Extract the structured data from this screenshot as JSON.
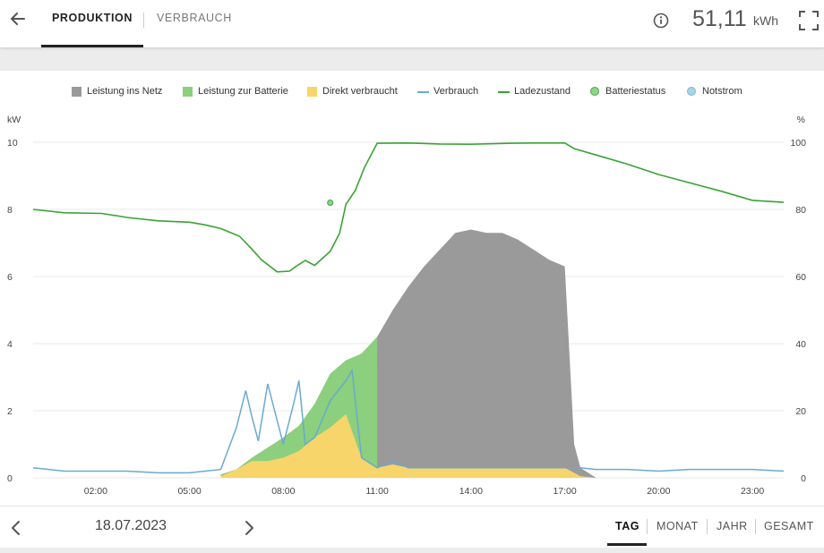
{
  "header": {
    "tabs": [
      {
        "label": "PRODUKTION",
        "active": true
      },
      {
        "label": "VERBRAUCH",
        "active": false
      }
    ],
    "total_value": "51,11",
    "total_unit": "kWh",
    "icons": {
      "back": "arrow-left-icon",
      "info": "info-icon",
      "fullscreen": "fullscreen-icon"
    }
  },
  "footer": {
    "date": "18.07.2023",
    "periods": [
      {
        "label": "TAG",
        "active": true
      },
      {
        "label": "MONAT",
        "active": false
      },
      {
        "label": "JAHR",
        "active": false
      },
      {
        "label": "GESAMT",
        "active": false
      }
    ],
    "icons": {
      "prev": "chevron-left-icon",
      "next": "chevron-right-icon"
    }
  },
  "chart_data": {
    "type": "area",
    "y_left_label": "kW",
    "y_right_label": "%",
    "y_left_ticks": [
      0,
      2,
      4,
      6,
      8,
      10
    ],
    "y_right_ticks": [
      0,
      20,
      40,
      60,
      80,
      100
    ],
    "ylim_left": [
      0,
      10
    ],
    "ylim_right": [
      0,
      100
    ],
    "x_ticks": [
      "02:00",
      "05:00",
      "08:00",
      "11:00",
      "14:00",
      "17:00",
      "20:00",
      "23:00"
    ],
    "x_range_hours": [
      0,
      24
    ],
    "grid": true,
    "legend_position": "top",
    "colors": {
      "grid": "#9a9a9a",
      "battery": "#8ccf7e",
      "direct": "#f7d56a",
      "consumption": "#6aaad0",
      "soc": "#3aa335",
      "battery_status": "#8fd48a",
      "notstrom": "#a8d4e6"
    },
    "legend": [
      {
        "name": "Leistung ins Netz",
        "kind": "square",
        "color": "#9a9a9a"
      },
      {
        "name": "Leistung zur Batterie",
        "kind": "square",
        "color": "#8ccf7e"
      },
      {
        "name": "Direkt verbraucht",
        "kind": "square",
        "color": "#f7d56a"
      },
      {
        "name": "Verbrauch",
        "kind": "line",
        "color": "#6aaad0"
      },
      {
        "name": "Ladezustand",
        "kind": "line",
        "color": "#3aa335"
      },
      {
        "name": "Batteriestatus",
        "kind": "dot",
        "color": "#8fd48a"
      },
      {
        "name": "Notstrom",
        "kind": "dot",
        "color": "#a8d4e6"
      }
    ],
    "series": {
      "soc": {
        "x": [
          0,
          1,
          2.2,
          3,
          4,
          5,
          5.5,
          6,
          6.6,
          7,
          7.3,
          7.8,
          8.2,
          8.4,
          8.7,
          9,
          9.5,
          9.8,
          10,
          10.3,
          10.6,
          11,
          12,
          13,
          14,
          15.3,
          16,
          17,
          17.3,
          18,
          19,
          20,
          21,
          22,
          23,
          24
        ],
        "y": [
          80,
          79,
          78.8,
          77.6,
          76.6,
          76.2,
          75.4,
          74.3,
          72,
          68.1,
          65,
          61.4,
          61.6,
          63,
          64.8,
          63.3,
          67.5,
          72.9,
          81.5,
          85.6,
          92.6,
          99.7,
          99.8,
          99.5,
          99.4,
          99.7,
          99.8,
          99.8,
          98.1,
          96.2,
          93.5,
          90.4,
          87.9,
          85.4,
          82.7,
          82.1
        ]
      },
      "battery_status_point": {
        "x": 9.5,
        "y": 82
      },
      "total_production": {
        "x": [
          6,
          6.5,
          7,
          7.5,
          8,
          8.5,
          9,
          9.5,
          10,
          10.5,
          11,
          11.5,
          12,
          12.5,
          13,
          13.5,
          14,
          14.5,
          15,
          15.5,
          16,
          16.5,
          17,
          17.3,
          17.5,
          18
        ],
        "y": [
          0.1,
          0.25,
          0.6,
          0.9,
          1.2,
          1.55,
          2.2,
          3.1,
          3.5,
          3.7,
          4.2,
          5.0,
          5.7,
          6.3,
          6.8,
          7.3,
          7.4,
          7.3,
          7.3,
          7.1,
          6.8,
          6.5,
          6.3,
          1.0,
          0.3,
          0.0
        ]
      },
      "direct_consumption": {
        "x": [
          6,
          6.5,
          7,
          7.5,
          8,
          8.5,
          9,
          9.5,
          10,
          10.5,
          11,
          11.5,
          12,
          12.5,
          13,
          13.5,
          14,
          14.5,
          15,
          15.5,
          16,
          16.5,
          17,
          17.5,
          18
        ],
        "y": [
          0.05,
          0.25,
          0.5,
          0.5,
          0.6,
          0.8,
          1.2,
          1.5,
          1.9,
          0.6,
          0.3,
          0.4,
          0.3,
          0.3,
          0.3,
          0.3,
          0.3,
          0.3,
          0.3,
          0.3,
          0.3,
          0.3,
          0.3,
          0.05,
          0.0
        ]
      },
      "consumption": {
        "x": [
          0,
          1,
          2,
          3,
          4,
          5,
          5.5,
          6,
          6.5,
          6.8,
          7,
          7.2,
          7.5,
          8,
          8.3,
          8.5,
          8.7,
          9,
          9.5,
          10,
          10.2,
          10.5,
          11,
          11.5,
          12,
          12.5,
          13,
          13.5,
          14,
          14.5,
          15,
          15.5,
          16,
          16.5,
          17,
          17.5,
          18,
          19,
          20,
          21,
          22,
          23,
          24
        ],
        "y": [
          0.3,
          0.2,
          0.2,
          0.2,
          0.15,
          0.15,
          0.2,
          0.25,
          1.5,
          2.6,
          1.8,
          1.1,
          2.8,
          1.0,
          2.1,
          2.9,
          1.0,
          1.2,
          2.3,
          2.9,
          3.2,
          0.6,
          0.3,
          0.5,
          0.3,
          0.3,
          0.3,
          0.3,
          0.3,
          0.3,
          0.3,
          0.3,
          0.3,
          0.3,
          0.3,
          0.3,
          0.25,
          0.25,
          0.2,
          0.25,
          0.25,
          0.25,
          0.2
        ]
      }
    }
  }
}
